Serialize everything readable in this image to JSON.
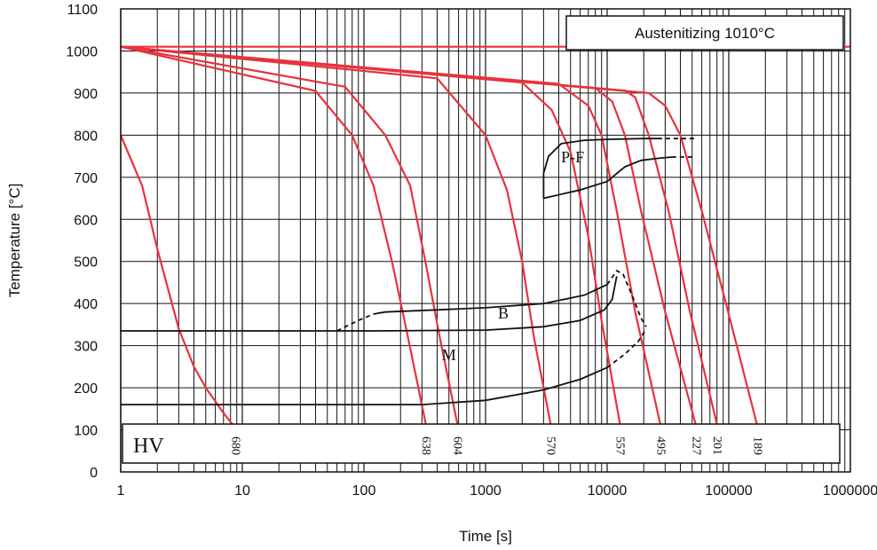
{
  "chart_data": {
    "type": "line",
    "title": "",
    "xlabel": "Time [s]",
    "ylabel": "Temperature [°C]",
    "xscale": "log",
    "xlim": [
      1,
      1000000
    ],
    "ylim": [
      0,
      1100
    ],
    "grid": true,
    "x_ticks": [
      "1",
      "10",
      "100",
      "1000",
      "10000",
      "100000",
      "1000000"
    ],
    "y_ticks": [
      "0",
      "100",
      "200",
      "300",
      "400",
      "500",
      "600",
      "700",
      "800",
      "900",
      "1000",
      "1100"
    ],
    "annotation": "Austenitizing 1010°C",
    "austenitizing_temperature": 1010,
    "hardness_label": "HV",
    "line_color": "#e8323c",
    "boundary_color": "#111111",
    "cooling_curves": [
      {
        "hardness": "680",
        "points": [
          [
            1,
            800
          ],
          [
            1.5,
            680
          ],
          [
            2,
            530
          ],
          [
            3,
            340
          ],
          [
            4,
            250
          ],
          [
            5,
            200
          ],
          [
            7,
            140
          ],
          [
            9,
            100
          ]
        ]
      },
      {
        "hardness": "638",
        "points": [
          [
            1,
            1010
          ],
          [
            40,
            905
          ],
          [
            80,
            800
          ],
          [
            120,
            680
          ],
          [
            170,
            500
          ],
          [
            230,
            320
          ],
          [
            330,
            100
          ]
        ]
      },
      {
        "hardness": "604",
        "points": [
          [
            1,
            1010
          ],
          [
            70,
            915
          ],
          [
            150,
            800
          ],
          [
            240,
            680
          ],
          [
            320,
            500
          ],
          [
            420,
            320
          ],
          [
            600,
            100
          ]
        ]
      },
      {
        "hardness": "570",
        "points": [
          [
            1,
            1010
          ],
          [
            400,
            935
          ],
          [
            1000,
            800
          ],
          [
            1500,
            670
          ],
          [
            2000,
            500
          ],
          [
            2500,
            320
          ],
          [
            3500,
            100
          ]
        ]
      },
      {
        "hardness": "557",
        "points": [
          [
            1,
            1010
          ],
          [
            2000,
            925
          ],
          [
            3500,
            860
          ],
          [
            5000,
            760
          ],
          [
            7000,
            560
          ],
          [
            9000,
            360
          ],
          [
            13000,
            100
          ]
        ]
      },
      {
        "hardness": "495",
        "points": [
          [
            1,
            1010
          ],
          [
            4000,
            922
          ],
          [
            7000,
            870
          ],
          [
            9000,
            800
          ],
          [
            12000,
            620
          ],
          [
            17000,
            380
          ],
          [
            28000,
            100
          ]
        ]
      },
      {
        "hardness": "227",
        "points": [
          [
            1,
            1010
          ],
          [
            8000,
            912
          ],
          [
            11000,
            880
          ],
          [
            14000,
            800
          ],
          [
            19000,
            620
          ],
          [
            30000,
            380
          ],
          [
            55000,
            100
          ]
        ]
      },
      {
        "hardness": "201",
        "points": [
          [
            1,
            1010
          ],
          [
            14000,
            906
          ],
          [
            17000,
            890
          ],
          [
            22000,
            800
          ],
          [
            32000,
            620
          ],
          [
            48000,
            380
          ],
          [
            82000,
            100
          ]
        ]
      },
      {
        "hardness": "189",
        "points": [
          [
            1,
            1010
          ],
          [
            22000,
            900
          ],
          [
            30000,
            870
          ],
          [
            40000,
            800
          ],
          [
            60000,
            620
          ],
          [
            95000,
            400
          ],
          [
            175000,
            100
          ]
        ]
      }
    ],
    "regions": [
      {
        "label": "P-F",
        "label_position": [
          5200,
          735
        ],
        "lines": [
          {
            "style": "solid",
            "points": [
              [
                3000,
                650
              ],
              [
                3000,
                710
              ],
              [
                3300,
                750
              ],
              [
                4200,
                780
              ],
              [
                6500,
                788
              ],
              [
                10000,
                790
              ],
              [
                20000,
                792
              ],
              [
                26000,
                792
              ]
            ]
          },
          {
            "style": "dashed",
            "points": [
              [
                26000,
                792
              ],
              [
                55000,
                792
              ]
            ]
          },
          {
            "style": "solid",
            "points": [
              [
                3000,
                650
              ],
              [
                6000,
                670
              ],
              [
                10000,
                690
              ],
              [
                11000,
                700
              ],
              [
                14000,
                725
              ],
              [
                19000,
                740
              ],
              [
                26000,
                745
              ],
              [
                34000,
                748
              ]
            ]
          },
          {
            "style": "dashed",
            "points": [
              [
                34000,
                748
              ],
              [
                52000,
                748
              ]
            ]
          }
        ]
      },
      {
        "label": "B",
        "label_position": [
          1400,
          365
        ],
        "lines": [
          {
            "style": "dashed",
            "points": [
              [
                58000,
                0
              ],
              [
                58000,
                0
              ]
            ]
          },
          {
            "style": "dashed",
            "points": [
              [
                60,
                335
              ],
              [
                90,
                360
              ],
              [
                120,
                375
              ]
            ]
          },
          {
            "style": "solid",
            "points": [
              [
                120,
                375
              ],
              [
                150,
                380
              ],
              [
                400,
                385
              ],
              [
                1000,
                390
              ],
              [
                3000,
                400
              ],
              [
                6500,
                420
              ],
              [
                10000,
                445
              ]
            ]
          },
          {
            "style": "dashed",
            "points": [
              [
                10000,
                445
              ],
              [
                12000,
                478
              ],
              [
                13500,
                470
              ],
              [
                16000,
                420
              ],
              [
                19000,
                365
              ],
              [
                21000,
                345
              ]
            ]
          },
          {
            "style": "solid",
            "points": [
              [
                1,
                335
              ],
              [
                130,
                335
              ],
              [
                1000,
                337
              ],
              [
                3000,
                345
              ],
              [
                6000,
                360
              ],
              [
                9500,
                385
              ],
              [
                11000,
                410
              ],
              [
                12000,
                465
              ]
            ]
          }
        ]
      },
      {
        "label": "M",
        "label_position": [
          500,
          265
        ],
        "lines": [
          {
            "style": "solid",
            "points": [
              [
                1,
                160
              ],
              [
                300,
                160
              ],
              [
                1000,
                170
              ],
              [
                3000,
                195
              ],
              [
                6000,
                220
              ],
              [
                10000,
                248
              ]
            ]
          },
          {
            "style": "dashed",
            "points": [
              [
                10000,
                248
              ],
              [
                14000,
                280
              ],
              [
                18000,
                310
              ],
              [
                21000,
                340
              ]
            ]
          }
        ]
      }
    ]
  }
}
